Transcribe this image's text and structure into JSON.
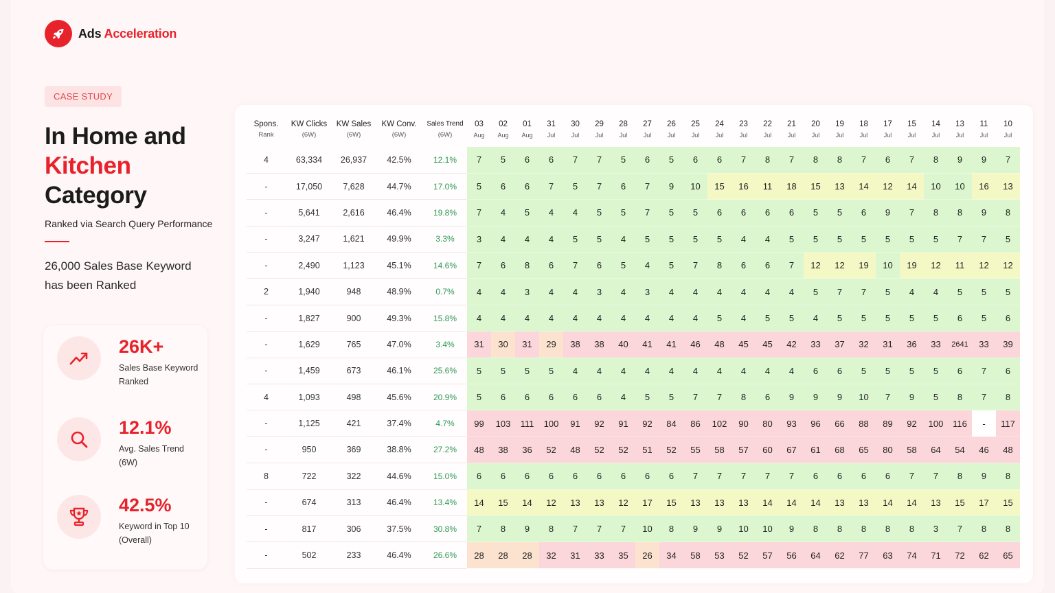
{
  "brand": {
    "name_a": "Ads",
    "name_b": "Acceleration",
    "logo_icon": "rocket-icon",
    "accent": "#e8222b"
  },
  "tag": "CASE STUDY",
  "headline": {
    "line1": "In Home and",
    "line2": "Kitchen",
    "line3": "Category"
  },
  "subline": "Ranked via Search Query Performance",
  "description": "26,000 Sales Base Keyword has been Ranked",
  "stats": [
    {
      "icon": "trend-up-icon",
      "value": "26K+",
      "label": "Sales Base Keyword Ranked"
    },
    {
      "icon": "search-icon",
      "value": "12.1%",
      "label": "Avg. Sales Trend (6W)"
    },
    {
      "icon": "trophy-icon",
      "value": "42.5%",
      "label": "Keyword in Top 10 (Overall)"
    }
  ],
  "table": {
    "metric_headers": [
      {
        "title": "Spons.",
        "sub": "Rank"
      },
      {
        "title": "KW Clicks",
        "sub": "(6W)"
      },
      {
        "title": "KW Sales",
        "sub": "(6W)"
      },
      {
        "title": "KW Conv.",
        "sub": "(6W)"
      },
      {
        "title": "Sales Trend",
        "sub": "(6W)"
      }
    ],
    "date_headers": [
      {
        "day": "03",
        "month": "Aug"
      },
      {
        "day": "02",
        "month": "Aug"
      },
      {
        "day": "01",
        "month": "Aug"
      },
      {
        "day": "31",
        "month": "Jul"
      },
      {
        "day": "30",
        "month": "Jul"
      },
      {
        "day": "29",
        "month": "Jul"
      },
      {
        "day": "28",
        "month": "Jul"
      },
      {
        "day": "27",
        "month": "Jul"
      },
      {
        "day": "26",
        "month": "Jul"
      },
      {
        "day": "25",
        "month": "Jul"
      },
      {
        "day": "24",
        "month": "Jul"
      },
      {
        "day": "23",
        "month": "Jul"
      },
      {
        "day": "22",
        "month": "Jul"
      },
      {
        "day": "21",
        "month": "Jul"
      },
      {
        "day": "20",
        "month": "Jul"
      },
      {
        "day": "19",
        "month": "Jul"
      },
      {
        "day": "18",
        "month": "Jul"
      },
      {
        "day": "17",
        "month": "Jul"
      },
      {
        "day": "15",
        "month": "Jul"
      },
      {
        "day": "14",
        "month": "Jul"
      },
      {
        "day": "13",
        "month": "Jul"
      },
      {
        "day": "11",
        "month": "Jul"
      },
      {
        "day": "10",
        "month": "Jul"
      }
    ],
    "rows": [
      {
        "spons": "4",
        "clicks": "63,334",
        "sales": "26,937",
        "conv": "42.5%",
        "trend": "12.1%",
        "ranks": [
          "7",
          "5",
          "6",
          "6",
          "7",
          "7",
          "5",
          "6",
          "5",
          "6",
          "6",
          "7",
          "8",
          "7",
          "8",
          "8",
          "7",
          "6",
          "7",
          "8",
          "9",
          "9",
          "7"
        ]
      },
      {
        "spons": "-",
        "clicks": "17,050",
        "sales": "7,628",
        "conv": "44.7%",
        "trend": "17.0%",
        "ranks": [
          "5",
          "6",
          "6",
          "7",
          "5",
          "7",
          "6",
          "7",
          "9",
          "10",
          "15",
          "16",
          "11",
          "18",
          "15",
          "13",
          "14",
          "12",
          "14",
          "10",
          "10",
          "16",
          "13"
        ]
      },
      {
        "spons": "-",
        "clicks": "5,641",
        "sales": "2,616",
        "conv": "46.4%",
        "trend": "19.8%",
        "ranks": [
          "7",
          "4",
          "5",
          "4",
          "4",
          "5",
          "5",
          "7",
          "5",
          "5",
          "6",
          "6",
          "6",
          "6",
          "5",
          "5",
          "6",
          "9",
          "7",
          "8",
          "8",
          "9",
          "8"
        ]
      },
      {
        "spons": "-",
        "clicks": "3,247",
        "sales": "1,621",
        "conv": "49.9%",
        "trend": "3.3%",
        "ranks": [
          "3",
          "4",
          "4",
          "4",
          "5",
          "5",
          "4",
          "5",
          "5",
          "5",
          "5",
          "4",
          "4",
          "5",
          "5",
          "5",
          "5",
          "5",
          "5",
          "5",
          "7",
          "7",
          "5"
        ]
      },
      {
        "spons": "-",
        "clicks": "2,490",
        "sales": "1,123",
        "conv": "45.1%",
        "trend": "14.6%",
        "ranks": [
          "7",
          "6",
          "8",
          "6",
          "7",
          "6",
          "5",
          "4",
          "5",
          "7",
          "8",
          "6",
          "6",
          "7",
          "12",
          "12",
          "19",
          "10",
          "19",
          "12",
          "11",
          "12",
          "12"
        ]
      },
      {
        "spons": "2",
        "clicks": "1,940",
        "sales": "948",
        "conv": "48.9%",
        "trend": "0.7%",
        "ranks": [
          "4",
          "4",
          "3",
          "4",
          "4",
          "3",
          "4",
          "3",
          "4",
          "4",
          "4",
          "4",
          "4",
          "4",
          "5",
          "7",
          "7",
          "5",
          "4",
          "4",
          "5",
          "5",
          "5"
        ]
      },
      {
        "spons": "-",
        "clicks": "1,827",
        "sales": "900",
        "conv": "49.3%",
        "trend": "15.8%",
        "ranks": [
          "4",
          "4",
          "4",
          "4",
          "4",
          "4",
          "4",
          "4",
          "4",
          "4",
          "5",
          "4",
          "5",
          "5",
          "4",
          "5",
          "5",
          "5",
          "5",
          "5",
          "6",
          "5",
          "6"
        ]
      },
      {
        "spons": "-",
        "clicks": "1,629",
        "sales": "765",
        "conv": "47.0%",
        "trend": "3.4%",
        "ranks": [
          "31",
          "30",
          "31",
          "29",
          "38",
          "38",
          "40",
          "41",
          "41",
          "46",
          "48",
          "45",
          "45",
          "42",
          "33",
          "37",
          "32",
          "31",
          "36",
          "33",
          "2641",
          "33",
          "39"
        ]
      },
      {
        "spons": "-",
        "clicks": "1,459",
        "sales": "673",
        "conv": "46.1%",
        "trend": "25.6%",
        "ranks": [
          "5",
          "5",
          "5",
          "5",
          "4",
          "4",
          "4",
          "4",
          "4",
          "4",
          "4",
          "4",
          "4",
          "4",
          "6",
          "6",
          "5",
          "5",
          "5",
          "5",
          "6",
          "7",
          "6"
        ]
      },
      {
        "spons": "4",
        "clicks": "1,093",
        "sales": "498",
        "conv": "45.6%",
        "trend": "20.9%",
        "ranks": [
          "5",
          "6",
          "6",
          "6",
          "6",
          "6",
          "4",
          "5",
          "5",
          "7",
          "7",
          "8",
          "6",
          "9",
          "9",
          "9",
          "10",
          "7",
          "9",
          "5",
          "8",
          "7",
          "8"
        ]
      },
      {
        "spons": "-",
        "clicks": "1,125",
        "sales": "421",
        "conv": "37.4%",
        "trend": "4.7%",
        "ranks": [
          "99",
          "103",
          "111",
          "100",
          "91",
          "92",
          "91",
          "92",
          "84",
          "86",
          "102",
          "90",
          "80",
          "93",
          "96",
          "66",
          "88",
          "89",
          "92",
          "100",
          "116",
          "-",
          "117"
        ]
      },
      {
        "spons": "-",
        "clicks": "950",
        "sales": "369",
        "conv": "38.8%",
        "trend": "27.2%",
        "ranks": [
          "48",
          "38",
          "36",
          "52",
          "48",
          "52",
          "52",
          "51",
          "52",
          "55",
          "58",
          "57",
          "60",
          "67",
          "61",
          "68",
          "65",
          "80",
          "58",
          "64",
          "54",
          "46",
          "48"
        ]
      },
      {
        "spons": "8",
        "clicks": "722",
        "sales": "322",
        "conv": "44.6%",
        "trend": "15.0%",
        "ranks": [
          "6",
          "6",
          "6",
          "6",
          "6",
          "6",
          "6",
          "6",
          "6",
          "7",
          "7",
          "7",
          "7",
          "7",
          "6",
          "6",
          "6",
          "6",
          "7",
          "7",
          "8",
          "9",
          "8"
        ]
      },
      {
        "spons": "-",
        "clicks": "674",
        "sales": "313",
        "conv": "46.4%",
        "trend": "13.4%",
        "ranks": [
          "14",
          "15",
          "14",
          "12",
          "13",
          "13",
          "12",
          "17",
          "15",
          "13",
          "13",
          "13",
          "14",
          "14",
          "14",
          "13",
          "13",
          "14",
          "14",
          "13",
          "15",
          "17",
          "15"
        ]
      },
      {
        "spons": "-",
        "clicks": "817",
        "sales": "306",
        "conv": "37.5%",
        "trend": "30.8%",
        "ranks": [
          "7",
          "8",
          "9",
          "8",
          "7",
          "7",
          "7",
          "10",
          "8",
          "9",
          "9",
          "10",
          "10",
          "9",
          "8",
          "8",
          "8",
          "8",
          "8",
          "3",
          "7",
          "8",
          "8"
        ]
      },
      {
        "spons": "-",
        "clicks": "502",
        "sales": "233",
        "conv": "46.4%",
        "trend": "26.6%",
        "ranks": [
          "28",
          "28",
          "28",
          "32",
          "31",
          "33",
          "35",
          "26",
          "34",
          "58",
          "53",
          "52",
          "57",
          "56",
          "64",
          "62",
          "77",
          "63",
          "74",
          "71",
          "72",
          "62",
          "65"
        ]
      }
    ],
    "colors": {
      "top": "#dcf7cf",
      "mid": "#f4f8c4",
      "low": "#fce3cf",
      "worst": "#fbd6da",
      "empty": "#ffffff",
      "trend": "#2f9a57"
    }
  }
}
